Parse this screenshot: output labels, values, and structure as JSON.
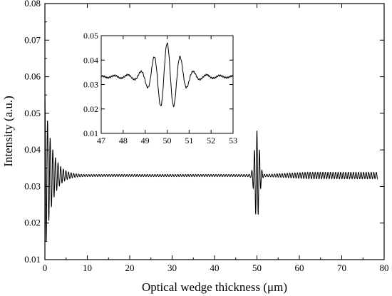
{
  "chart_data": [
    {
      "type": "line",
      "name": "main",
      "title": "",
      "xlabel": "Optical wedge thickness (μm)",
      "ylabel": "Intensity (a.u.)",
      "xlim": [
        0,
        80
      ],
      "ylim": [
        0.01,
        0.08
      ],
      "xticks": [
        0,
        10,
        20,
        30,
        40,
        50,
        60,
        70,
        80
      ],
      "yticks": [
        0.01,
        0.02,
        0.03,
        0.04,
        0.05,
        0.06,
        0.07,
        0.08
      ],
      "xtick_labels": [
        "0",
        "10",
        "20",
        "30",
        "40",
        "50",
        "60",
        "70",
        "80"
      ],
      "ytick_labels": [
        "0.01",
        "0.02",
        "0.03",
        "0.04",
        "0.05",
        "0.06",
        "0.07",
        "0.08"
      ],
      "grid": false,
      "line_color": "#000000",
      "series": [
        {
          "baseline": 0.033,
          "x_range": [
            0,
            78.5
          ],
          "features": [
            {
              "center": 0.0,
              "peak_max": 0.055,
              "peak_min": 0.016
            },
            {
              "center": 50.0,
              "peak_max": 0.045,
              "peak_min": 0.02
            }
          ],
          "points": [
            [
              0.0,
              0.055
            ],
            [
              0.2,
              0.016
            ],
            [
              0.5,
              0.041
            ],
            [
              0.8,
              0.026
            ],
            [
              1.1,
              0.037
            ],
            [
              1.4,
              0.029
            ],
            [
              1.8,
              0.035
            ],
            [
              2.3,
              0.031
            ],
            [
              3.0,
              0.034
            ],
            [
              4.0,
              0.0325
            ],
            [
              6.0,
              0.0333
            ],
            [
              10.0,
              0.0331
            ],
            [
              20.0,
              0.0331
            ],
            [
              30.0,
              0.0331
            ],
            [
              40.0,
              0.0331
            ],
            [
              47.0,
              0.0331
            ],
            [
              48.0,
              0.034
            ],
            [
              48.8,
              0.0355
            ],
            [
              49.2,
              0.03
            ],
            [
              49.5,
              0.041
            ],
            [
              49.7,
              0.02
            ],
            [
              50.0,
              0.045
            ],
            [
              50.3,
              0.02
            ],
            [
              50.5,
              0.041
            ],
            [
              50.8,
              0.03
            ],
            [
              51.2,
              0.0355
            ],
            [
              52.0,
              0.034
            ],
            [
              53.0,
              0.0331
            ],
            [
              60.0,
              0.0333
            ],
            [
              70.0,
              0.0334
            ],
            [
              78.5,
              0.0332
            ]
          ]
        }
      ]
    },
    {
      "type": "line",
      "name": "inset",
      "title": "",
      "xlim": [
        47,
        53
      ],
      "ylim": [
        0.01,
        0.05
      ],
      "xticks": [
        47,
        48,
        49,
        50,
        51,
        52,
        53
      ],
      "yticks": [
        0.01,
        0.02,
        0.03,
        0.04,
        0.05
      ],
      "xtick_labels": [
        "47",
        "48",
        "49",
        "50",
        "51",
        "52",
        "53"
      ],
      "ytick_labels": [
        "0.01",
        "0.02",
        "0.03",
        "0.04",
        "0.05"
      ],
      "grid": false,
      "line_color": "#000000",
      "series": [
        {
          "baseline": 0.033,
          "points": [
            [
              47.0,
              0.0335
            ],
            [
              47.5,
              0.0325
            ],
            [
              48.0,
              0.034
            ],
            [
              48.6,
              0.0355
            ],
            [
              48.9,
              0.0325
            ],
            [
              49.25,
              0.04
            ],
            [
              49.6,
              0.028
            ],
            [
              49.7,
              0.02
            ],
            [
              49.8,
              0.03
            ],
            [
              49.95,
              0.045
            ],
            [
              50.1,
              0.03
            ],
            [
              50.2,
              0.02
            ],
            [
              50.3,
              0.028
            ],
            [
              50.5,
              0.042
            ],
            [
              50.8,
              0.03
            ],
            [
              51.1,
              0.036
            ],
            [
              51.5,
              0.032
            ],
            [
              51.9,
              0.0345
            ],
            [
              52.4,
              0.0325
            ],
            [
              53.0,
              0.0335
            ]
          ]
        }
      ]
    }
  ]
}
